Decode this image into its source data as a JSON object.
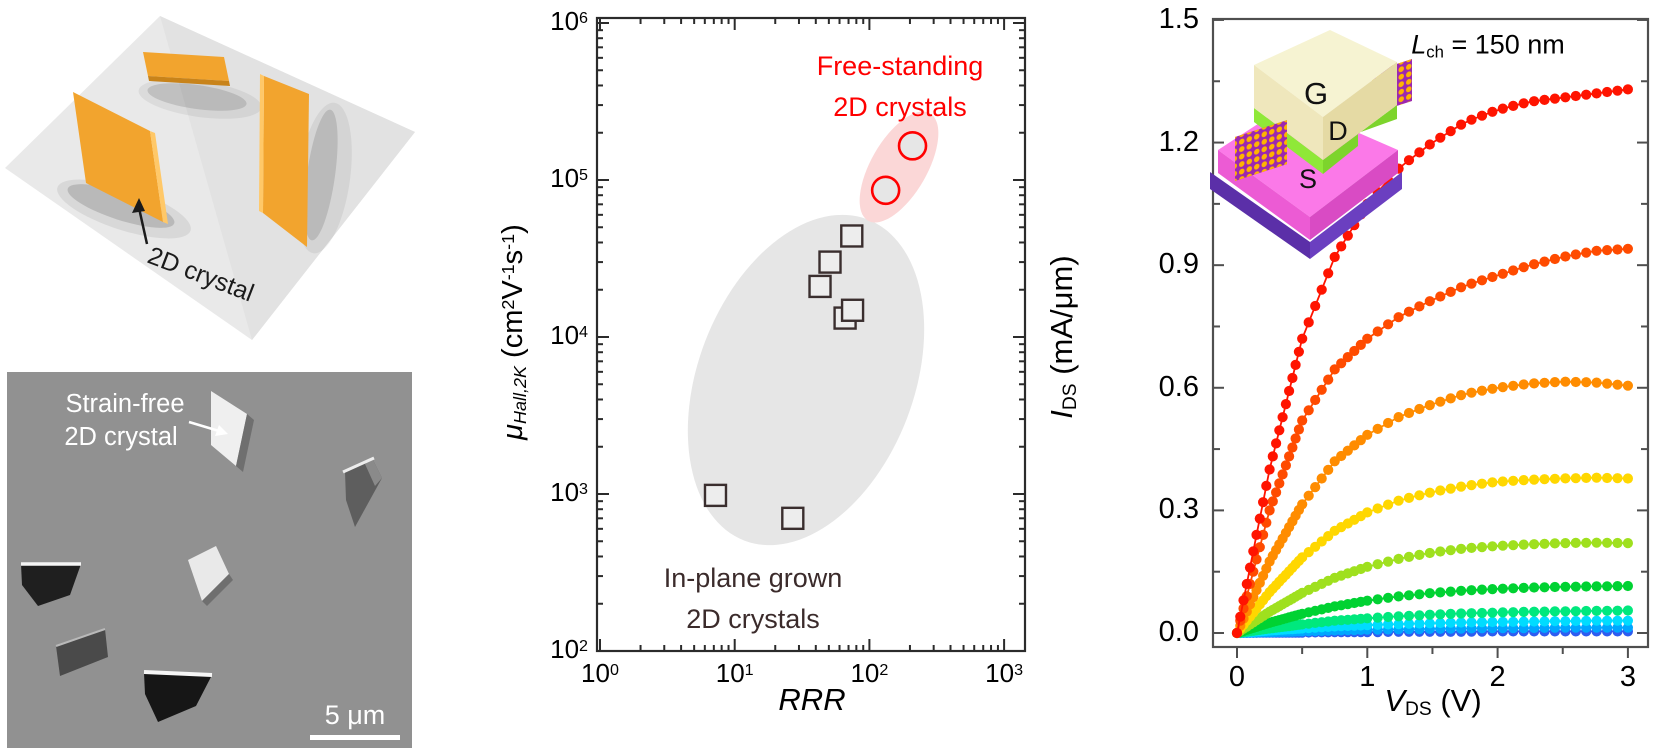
{
  "render_panel": {
    "label": "2D crystal",
    "crystal_color": "#F2A42E",
    "substrate_color": "#E9E9E9"
  },
  "sem_panel": {
    "label": [
      "Strain-free",
      "2D crystal"
    ],
    "scale_bar_label": "5 μm",
    "background": "#919191"
  },
  "inset": {
    "gate_label": "G",
    "source_label": "S",
    "drain_label": "D"
  },
  "chart_data": [
    {
      "id": "hall-mobility-vs-rrr",
      "type": "scatter",
      "xscale": "log",
      "yscale": "log",
      "xlim": [
        1,
        1000
      ],
      "ylim": [
        100,
        1000000
      ],
      "xlabel": "RRR",
      "ylabel": "μ_Hall,2K (cm^2 V^-1 s^-1)",
      "xlabel_parts": [
        {
          "t": "RRR",
          "i": true
        }
      ],
      "ylabel_parts": [
        {
          "t": "μ",
          "i": true
        },
        {
          "t": "Hall,2K",
          "i": true,
          "sub": true
        },
        {
          "t": " (cm"
        },
        {
          "t": "2",
          "sup": true
        },
        {
          "t": "V"
        },
        {
          "t": "-1",
          "sup": true
        },
        {
          "t": "s"
        },
        {
          "t": "-1",
          "sup": true
        },
        {
          "t": ")"
        }
      ],
      "xticks_exp": [
        0,
        1,
        2,
        3
      ],
      "yticks_exp": [
        2,
        3,
        4,
        5,
        6
      ],
      "grid": false,
      "series": [
        {
          "name": "In-plane grown 2D crystals",
          "marker": "square",
          "edge_color": "#3A2E2E",
          "fill_color": "#EDEDED",
          "points": [
            [
              7.2,
              980
            ],
            [
              27,
              700
            ],
            [
              43,
              21000
            ],
            [
              51,
              30000
            ],
            [
              74,
              44000
            ],
            [
              66,
              13200
            ],
            [
              75,
              14800
            ]
          ]
        },
        {
          "name": "Free-standing 2D crystals",
          "marker": "circle",
          "edge_color": "#FF0000",
          "fill_color": "#E6E6E6",
          "points": [
            [
              132,
              86000
            ],
            [
              209,
              165000
            ]
          ]
        }
      ],
      "regions": [
        {
          "name": "in-plane-region",
          "fill": "#E6E6E6"
        },
        {
          "name": "free-standing-region",
          "fill": "#FBD7D7"
        }
      ],
      "annotations": {
        "free_standing": [
          "Free-standing",
          "2D crystals"
        ],
        "free_standing_color": "#FF0000",
        "in_plane": [
          "In-plane grown",
          "2D crystals"
        ],
        "in_plane_color": "#3B2B2B"
      }
    },
    {
      "id": "fet-output-characteristics",
      "type": "line",
      "xlim": [
        0,
        3
      ],
      "ylim": [
        0,
        1.5
      ],
      "xlabel": "V_DS (V)",
      "ylabel": "I_DS (mA/μm)",
      "xlabel_parts": [
        {
          "t": "V",
          "i": true
        },
        {
          "t": "DS",
          "sub": true
        },
        {
          "t": " (V)"
        }
      ],
      "ylabel_parts": [
        {
          "t": "I",
          "i": true
        },
        {
          "t": "DS",
          "sub": true
        },
        {
          "t": " (mA/μm)"
        }
      ],
      "annotation": "L_ch = 150 nm",
      "annotation_parts": [
        {
          "t": "L",
          "i": true
        },
        {
          "t": "ch",
          "sub": true
        },
        {
          "t": " = 150 nm"
        }
      ],
      "xticks": [
        "0",
        "1",
        "2",
        "3"
      ],
      "yticks": [
        "0.0",
        "0.3",
        "0.6",
        "0.9",
        "1.2",
        "1.5"
      ],
      "x_V": [
        0,
        0.25,
        0.5,
        0.75,
        1,
        1.25,
        1.5,
        1.75,
        2,
        2.25,
        2.5,
        2.75,
        3
      ],
      "series": [
        {
          "color": "#FF1400",
          "I_mA_um": [
            0,
            0.4,
            0.72,
            0.92,
            1.05,
            1.14,
            1.2,
            1.25,
            1.28,
            1.3,
            1.31,
            1.32,
            1.33
          ]
        },
        {
          "color": "#FF4B00",
          "I_mA_um": [
            0,
            0.3,
            0.52,
            0.645,
            0.72,
            0.775,
            0.815,
            0.85,
            0.875,
            0.9,
            0.92,
            0.935,
            0.94
          ]
        },
        {
          "color": "#FF8C00",
          "I_mA_um": [
            0,
            0.175,
            0.315,
            0.42,
            0.485,
            0.53,
            0.56,
            0.585,
            0.6,
            0.61,
            0.615,
            0.613,
            0.605
          ]
        },
        {
          "color": "#FFD700",
          "I_mA_um": [
            0,
            0.1,
            0.185,
            0.25,
            0.295,
            0.325,
            0.345,
            0.36,
            0.37,
            0.375,
            0.378,
            0.38,
            0.378
          ]
        },
        {
          "color": "#9FE01E",
          "I_mA_um": [
            0,
            0.052,
            0.098,
            0.135,
            0.162,
            0.182,
            0.197,
            0.207,
            0.213,
            0.217,
            0.22,
            0.221,
            0.22
          ]
        },
        {
          "color": "#00D232",
          "I_mA_um": [
            0,
            0.025,
            0.047,
            0.065,
            0.079,
            0.09,
            0.098,
            0.104,
            0.108,
            0.111,
            0.113,
            0.114,
            0.115
          ]
        },
        {
          "color": "#00E87D",
          "I_mA_um": [
            0,
            0.011,
            0.021,
            0.03,
            0.036,
            0.041,
            0.045,
            0.048,
            0.05,
            0.052,
            0.053,
            0.054,
            0.055
          ]
        },
        {
          "color": "#00DCFF",
          "I_mA_um": [
            0,
            0.006,
            0.011,
            0.016,
            0.019,
            0.022,
            0.024,
            0.026,
            0.027,
            0.028,
            0.029,
            0.03,
            0.03
          ]
        },
        {
          "color": "#00A6FF",
          "I_mA_um": [
            0,
            0.002,
            0.004,
            0.006,
            0.008,
            0.009,
            0.01,
            0.011,
            0.012,
            0.012,
            0.013,
            0.013,
            0.013
          ]
        },
        {
          "color": "#2E5CF0",
          "I_mA_um": [
            0,
            0.001,
            0.001,
            0.002,
            0.002,
            0.003,
            0.003,
            0.003,
            0.004,
            0.004,
            0.004,
            0.004,
            0.004
          ]
        }
      ]
    }
  ]
}
